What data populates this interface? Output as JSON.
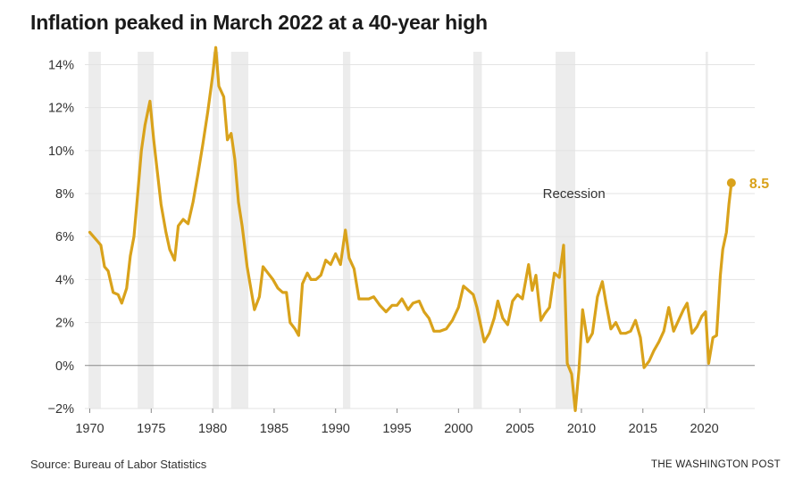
{
  "title": "Inflation peaked in March 2022 at a 40-year high",
  "source": "Source: Bureau of Labor Statistics",
  "brand": "THE WASHINGTON POST",
  "colors": {
    "line": "#d9a21b",
    "recession": "#ececec",
    "grid": "#e3e3e3",
    "zero": "#888888"
  },
  "chart_data": {
    "type": "line",
    "title": "Inflation peaked in March 2022 at a 40-year high",
    "xlabel": "",
    "ylabel": "",
    "xlim": [
      1969.6,
      2024.1
    ],
    "ylim": [
      -2,
      14.6
    ],
    "grid": true,
    "x_ticks": [
      1970,
      1975,
      1980,
      1985,
      1990,
      1995,
      2000,
      2005,
      2010,
      2015,
      2020
    ],
    "x_tick_labels": [
      "1970",
      "1975",
      "1980",
      "1985",
      "1990",
      "1995",
      "2000",
      "2005",
      "2010",
      "2015",
      "2020"
    ],
    "y_ticks": [
      -2,
      0,
      2,
      4,
      6,
      8,
      10,
      12,
      14
    ],
    "y_tick_labels": [
      "−2%",
      "0%",
      "2%",
      "4%",
      "6%",
      "8%",
      "10%",
      "12%",
      "14%"
    ],
    "recessions": [
      [
        1969.9,
        1970.9
      ],
      [
        1973.9,
        1975.2
      ],
      [
        1980.0,
        1980.5
      ],
      [
        1981.5,
        1982.9
      ],
      [
        1990.6,
        1991.2
      ],
      [
        2001.2,
        2001.9
      ],
      [
        2007.9,
        2009.5
      ],
      [
        2020.1,
        2020.3
      ]
    ],
    "annotations": [
      {
        "text": "Recession",
        "x": 2009.4,
        "y": 8.0
      }
    ],
    "end_label": {
      "x": 2022.2,
      "y": 8.5,
      "text": "8.5"
    },
    "series": [
      {
        "points": [
          [
            1970.0,
            6.2
          ],
          [
            1970.3,
            6.0
          ],
          [
            1970.6,
            5.8
          ],
          [
            1970.9,
            5.6
          ],
          [
            1971.2,
            4.6
          ],
          [
            1971.5,
            4.4
          ],
          [
            1971.9,
            3.4
          ],
          [
            1972.3,
            3.3
          ],
          [
            1972.6,
            2.9
          ],
          [
            1973.0,
            3.6
          ],
          [
            1973.3,
            5.1
          ],
          [
            1973.6,
            6.0
          ],
          [
            1973.9,
            8.0
          ],
          [
            1974.2,
            10.0
          ],
          [
            1974.5,
            11.2
          ],
          [
            1974.9,
            12.3
          ],
          [
            1975.2,
            10.5
          ],
          [
            1975.5,
            9.0
          ],
          [
            1975.8,
            7.5
          ],
          [
            1976.2,
            6.2
          ],
          [
            1976.5,
            5.4
          ],
          [
            1976.9,
            4.9
          ],
          [
            1977.2,
            6.5
          ],
          [
            1977.6,
            6.8
          ],
          [
            1978.0,
            6.6
          ],
          [
            1978.4,
            7.6
          ],
          [
            1978.8,
            8.9
          ],
          [
            1979.2,
            10.3
          ],
          [
            1979.6,
            11.8
          ],
          [
            1980.0,
            13.5
          ],
          [
            1980.25,
            14.8
          ],
          [
            1980.5,
            13.0
          ],
          [
            1980.9,
            12.5
          ],
          [
            1981.2,
            10.5
          ],
          [
            1981.5,
            10.8
          ],
          [
            1981.8,
            9.6
          ],
          [
            1982.1,
            7.6
          ],
          [
            1982.4,
            6.5
          ],
          [
            1982.8,
            4.6
          ],
          [
            1983.1,
            3.6
          ],
          [
            1983.4,
            2.6
          ],
          [
            1983.8,
            3.2
          ],
          [
            1984.1,
            4.6
          ],
          [
            1984.5,
            4.3
          ],
          [
            1984.9,
            4.0
          ],
          [
            1985.3,
            3.6
          ],
          [
            1985.7,
            3.4
          ],
          [
            1986.0,
            3.4
          ],
          [
            1986.3,
            2.0
          ],
          [
            1986.7,
            1.7
          ],
          [
            1987.0,
            1.4
          ],
          [
            1987.3,
            3.8
          ],
          [
            1987.7,
            4.3
          ],
          [
            1988.0,
            4.0
          ],
          [
            1988.4,
            4.0
          ],
          [
            1988.8,
            4.2
          ],
          [
            1989.2,
            4.9
          ],
          [
            1989.6,
            4.7
          ],
          [
            1990.0,
            5.2
          ],
          [
            1990.4,
            4.7
          ],
          [
            1990.8,
            6.3
          ],
          [
            1991.1,
            5.0
          ],
          [
            1991.5,
            4.5
          ],
          [
            1991.9,
            3.1
          ],
          [
            1992.3,
            3.1
          ],
          [
            1992.7,
            3.1
          ],
          [
            1993.1,
            3.2
          ],
          [
            1993.6,
            2.8
          ],
          [
            1994.1,
            2.5
          ],
          [
            1994.6,
            2.8
          ],
          [
            1995.0,
            2.8
          ],
          [
            1995.4,
            3.1
          ],
          [
            1995.9,
            2.6
          ],
          [
            1996.3,
            2.9
          ],
          [
            1996.8,
            3.0
          ],
          [
            1997.2,
            2.5
          ],
          [
            1997.6,
            2.2
          ],
          [
            1998.0,
            1.6
          ],
          [
            1998.5,
            1.6
          ],
          [
            1999.0,
            1.7
          ],
          [
            1999.5,
            2.1
          ],
          [
            2000.0,
            2.7
          ],
          [
            2000.4,
            3.7
          ],
          [
            2000.8,
            3.5
          ],
          [
            2001.2,
            3.3
          ],
          [
            2001.5,
            2.7
          ],
          [
            2001.8,
            1.9
          ],
          [
            2002.1,
            1.1
          ],
          [
            2002.5,
            1.5
          ],
          [
            2002.9,
            2.2
          ],
          [
            2003.2,
            3.0
          ],
          [
            2003.6,
            2.2
          ],
          [
            2004.0,
            1.9
          ],
          [
            2004.4,
            3.0
          ],
          [
            2004.8,
            3.3
          ],
          [
            2005.2,
            3.1
          ],
          [
            2005.7,
            4.7
          ],
          [
            2006.0,
            3.5
          ],
          [
            2006.3,
            4.2
          ],
          [
            2006.7,
            2.1
          ],
          [
            2007.0,
            2.4
          ],
          [
            2007.4,
            2.7
          ],
          [
            2007.8,
            4.3
          ],
          [
            2008.2,
            4.1
          ],
          [
            2008.55,
            5.6
          ],
          [
            2008.85,
            0.1
          ],
          [
            2009.2,
            -0.4
          ],
          [
            2009.5,
            -2.1
          ],
          [
            2009.8,
            -0.2
          ],
          [
            2010.1,
            2.6
          ],
          [
            2010.5,
            1.1
          ],
          [
            2010.9,
            1.5
          ],
          [
            2011.3,
            3.2
          ],
          [
            2011.7,
            3.9
          ],
          [
            2012.0,
            2.9
          ],
          [
            2012.4,
            1.7
          ],
          [
            2012.8,
            2.0
          ],
          [
            2013.2,
            1.5
          ],
          [
            2013.6,
            1.5
          ],
          [
            2014.0,
            1.6
          ],
          [
            2014.4,
            2.1
          ],
          [
            2014.8,
            1.3
          ],
          [
            2015.1,
            -0.1
          ],
          [
            2015.5,
            0.2
          ],
          [
            2015.9,
            0.7
          ],
          [
            2016.3,
            1.1
          ],
          [
            2016.7,
            1.6
          ],
          [
            2017.1,
            2.7
          ],
          [
            2017.5,
            1.6
          ],
          [
            2017.9,
            2.1
          ],
          [
            2018.3,
            2.6
          ],
          [
            2018.6,
            2.9
          ],
          [
            2019.0,
            1.5
          ],
          [
            2019.4,
            1.8
          ],
          [
            2019.8,
            2.3
          ],
          [
            2020.1,
            2.5
          ],
          [
            2020.35,
            0.1
          ],
          [
            2020.7,
            1.3
          ],
          [
            2021.0,
            1.4
          ],
          [
            2021.3,
            4.2
          ],
          [
            2021.5,
            5.4
          ],
          [
            2021.8,
            6.2
          ],
          [
            2022.0,
            7.5
          ],
          [
            2022.2,
            8.5
          ]
        ]
      }
    ]
  }
}
